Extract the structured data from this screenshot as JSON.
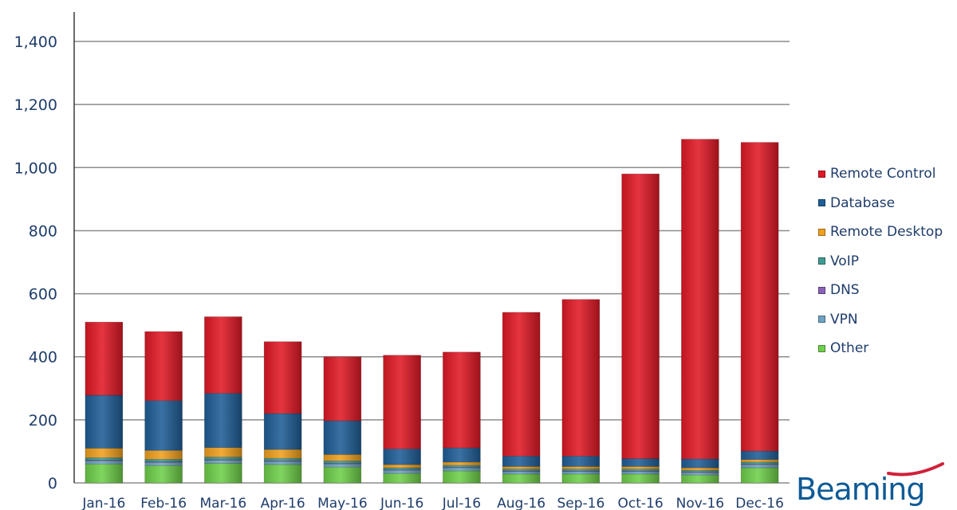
{
  "chart_data": {
    "type": "bar",
    "stacked": true,
    "categories": [
      "Jan-16",
      "Feb-16",
      "Mar-16",
      "Apr-16",
      "May-16",
      "Jun-16",
      "Jul-16",
      "Aug-16",
      "Sep-16",
      "Oct-16",
      "Nov-16",
      "Dec-16"
    ],
    "ylim": [
      0,
      1500
    ],
    "yticks": [
      0,
      200,
      400,
      600,
      800,
      1000,
      1200,
      1400
    ],
    "ytick_labels": [
      "0",
      "200",
      "400",
      "600",
      "800",
      "1,000",
      "1,200",
      "1,400"
    ],
    "grid": true,
    "legend_position": "right",
    "series": [
      {
        "name": "Other",
        "color": "#6fcf4a",
        "values": [
          60,
          55,
          62,
          58,
          50,
          30,
          38,
          28,
          28,
          28,
          25,
          48
        ]
      },
      {
        "name": "VPN",
        "color": "#6fa3c4",
        "values": [
          10,
          10,
          10,
          10,
          10,
          10,
          10,
          8,
          8,
          8,
          8,
          10
        ]
      },
      {
        "name": "DNS",
        "color": "#8a63b8",
        "values": [
          2,
          2,
          2,
          2,
          2,
          2,
          2,
          2,
          2,
          2,
          2,
          2
        ]
      },
      {
        "name": "VoIP",
        "color": "#3f9c92",
        "values": [
          8,
          8,
          8,
          8,
          8,
          6,
          6,
          6,
          6,
          6,
          5,
          6
        ]
      },
      {
        "name": "Remote Desktop",
        "color": "#f0a01e",
        "values": [
          30,
          28,
          30,
          28,
          20,
          10,
          10,
          8,
          8,
          8,
          8,
          8
        ]
      },
      {
        "name": "Database",
        "color": "#1f5e96",
        "values": [
          168,
          158,
          172,
          114,
          107,
          50,
          45,
          33,
          33,
          25,
          28,
          27
        ]
      },
      {
        "name": "Remote Control",
        "color": "#e01926",
        "values": [
          232,
          219,
          243,
          228,
          203,
          297,
          304,
          456,
          497,
          903,
          1014,
          979
        ]
      }
    ],
    "legend_order": [
      "Remote Control",
      "Database",
      "Remote Desktop",
      "VoIP",
      "DNS",
      "VPN",
      "Other"
    ]
  },
  "logo": {
    "text": "Beaming",
    "color": "#0d5a96",
    "accent": "#d0213a"
  }
}
